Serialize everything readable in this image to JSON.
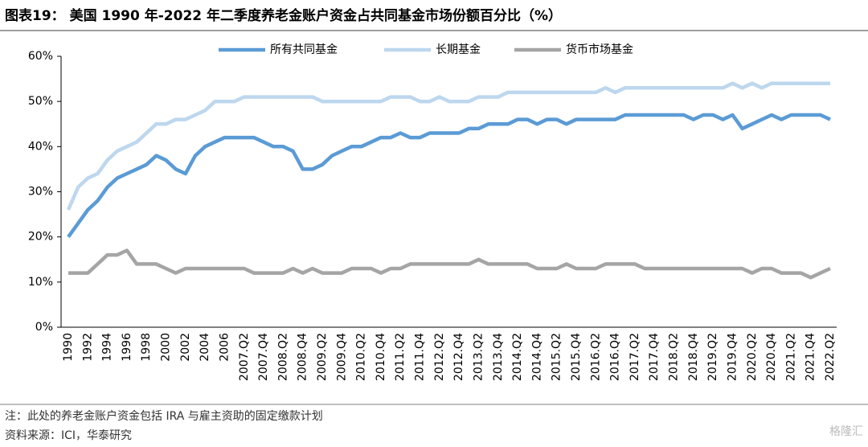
{
  "chart_data": {
    "type": "line",
    "title": "图表19： 美国 1990 年-2022 年二季度养老金账户资金占共同基金市场份额百分比（%）",
    "categories": [
      "1990",
      null,
      "1992",
      null,
      "1994",
      null,
      "1996",
      null,
      "1998",
      null,
      "2000",
      null,
      "2002",
      null,
      "2004",
      null,
      "2006",
      null,
      "2007.Q2",
      null,
      "2007.Q4",
      null,
      "2008.Q2",
      null,
      "2008.Q4",
      null,
      "2009.Q2",
      null,
      "2009.Q4",
      null,
      "2010.Q2",
      null,
      "2010.Q4",
      null,
      "2011.Q2",
      null,
      "2011.Q4",
      null,
      "2012.Q2",
      null,
      "2012.Q4",
      null,
      "2013.Q2",
      null,
      "2013.Q4",
      null,
      "2014.Q2",
      null,
      "2014.Q4",
      null,
      "2015.Q2",
      null,
      "2015.Q4",
      null,
      "2016.Q2",
      null,
      "2016.Q4",
      null,
      "2017.Q2",
      null,
      "2017.Q4",
      null,
      "2018.Q2",
      null,
      "2018.Q4",
      null,
      "2019.Q2",
      null,
      "2019.Q4",
      null,
      "2020.Q2",
      null,
      "2020.Q4",
      null,
      "2021.Q2",
      null,
      "2021.Q4",
      null,
      "2022.Q2"
    ],
    "series": [
      {
        "name": "所有共同基金",
        "color": "#5b9bd5",
        "values": [
          20,
          23,
          26,
          28,
          31,
          33,
          34,
          35,
          36,
          38,
          37,
          35,
          34,
          38,
          40,
          41,
          42,
          42,
          42,
          42,
          41,
          40,
          40,
          39,
          35,
          35,
          36,
          38,
          39,
          40,
          40,
          41,
          42,
          42,
          43,
          42,
          42,
          43,
          43,
          43,
          43,
          44,
          44,
          45,
          45,
          45,
          46,
          46,
          45,
          46,
          46,
          45,
          46,
          46,
          46,
          46,
          46,
          47,
          47,
          47,
          47,
          47,
          47,
          47,
          46,
          47,
          47,
          46,
          47,
          44,
          45,
          46,
          47,
          46,
          47,
          47,
          47,
          47,
          46
        ]
      },
      {
        "name": "长期基金",
        "color": "#bdd7ee",
        "values": [
          26,
          31,
          33,
          34,
          37,
          39,
          40,
          41,
          43,
          45,
          45,
          46,
          46,
          47,
          48,
          50,
          50,
          50,
          51,
          51,
          51,
          51,
          51,
          51,
          51,
          51,
          50,
          50,
          50,
          50,
          50,
          50,
          50,
          51,
          51,
          51,
          50,
          50,
          51,
          50,
          50,
          50,
          51,
          51,
          51,
          52,
          52,
          52,
          52,
          52,
          52,
          52,
          52,
          52,
          52,
          53,
          52,
          53,
          53,
          53,
          53,
          53,
          53,
          53,
          53,
          53,
          53,
          53,
          54,
          53,
          54,
          53,
          54,
          54,
          54,
          54,
          54,
          54,
          54
        ]
      },
      {
        "name": "货币市场基金",
        "color": "#a5a5a5",
        "values": [
          12,
          12,
          12,
          14,
          16,
          16,
          17,
          14,
          14,
          14,
          13,
          12,
          13,
          13,
          13,
          13,
          13,
          13,
          13,
          12,
          12,
          12,
          12,
          13,
          12,
          13,
          12,
          12,
          12,
          13,
          13,
          13,
          12,
          13,
          13,
          14,
          14,
          14,
          14,
          14,
          14,
          14,
          15,
          14,
          14,
          14,
          14,
          14,
          13,
          13,
          13,
          14,
          13,
          13,
          13,
          14,
          14,
          14,
          14,
          13,
          13,
          13,
          13,
          13,
          13,
          13,
          13,
          13,
          13,
          13,
          12,
          13,
          13,
          12,
          12,
          12,
          11,
          12,
          13
        ]
      }
    ],
    "ylim": [
      0,
      60
    ],
    "yticks": [
      {
        "value": 0,
        "label": "0%"
      },
      {
        "value": 10,
        "label": "10%"
      },
      {
        "value": 20,
        "label": "20%"
      },
      {
        "value": 30,
        "label": "30%"
      },
      {
        "value": 40,
        "label": "40%"
      },
      {
        "value": 50,
        "label": "50%"
      },
      {
        "value": 60,
        "label": "60%"
      }
    ],
    "legend": "top",
    "note": "注：此处的养老金账户资金包括 IRA 与雇主资助的固定缴款计划",
    "source": "资料来源：ICI，华泰研究",
    "watermark": "格隆汇"
  }
}
